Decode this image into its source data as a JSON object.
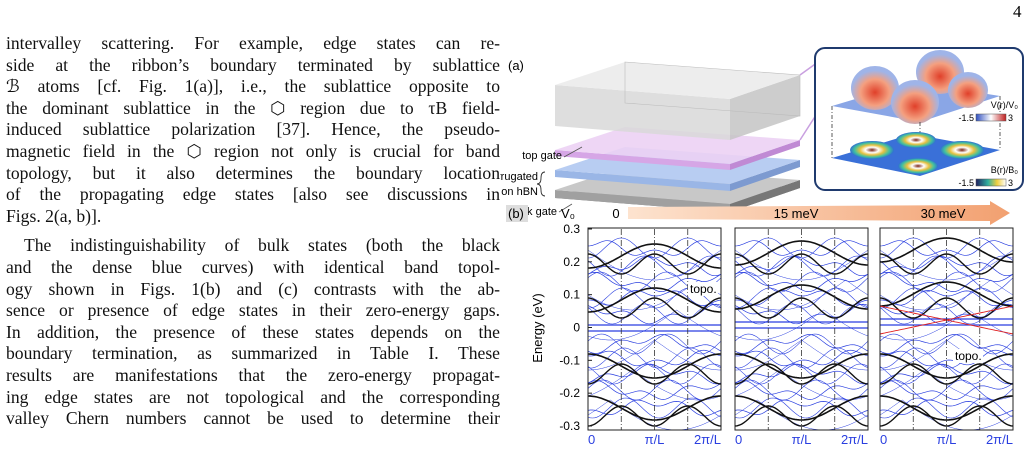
{
  "page_number": "4",
  "text": {
    "paragraphs": [
      [
        "intervalley scattering. For example, edge states can re-",
        "side at the ribbon’s boundary terminated by sublattice",
        "ℬ atoms [cf. Fig. 1(a)], i.e., the sublattice opposite to",
        "the dominant sublattice in the ⬡ region due to τB field-",
        "induced sublattice polarization [37]. Hence, the pseudo-",
        "magnetic field in the ⬡ region not only is crucial for band",
        "topology, but it also determines the boundary location",
        "of the propagating edge states [also see discussions in",
        "Figs. 2(a, b)]."
      ],
      [
        "The indistinguishability of bulk states (both the black",
        "and the dense blue curves) with identical band topol-",
        "ogy shown in Figs. 1(b) and (c) contrasts with the ab-",
        "sence or presence of edge states in their zero-energy gaps.",
        "In addition, the presence of these states depends on the",
        "boundary termination, as summarized in Table I. These",
        "results are manifestations that the zero-energy propagat-",
        "ing edge states are not topological and the corresponding",
        "valley Chern numbers cannot be used to determine their"
      ]
    ]
  },
  "figure": {
    "panel_a": {
      "label": "(a)",
      "layers": [
        "top gate",
        "corrugated",
        "Gr on hBN",
        "back gate"
      ],
      "inset": {
        "potential_label": "V(r)/V₀",
        "potential_range": [
          "-1.5",
          "3"
        ],
        "field_label": "B(r)/B₀",
        "field_range": [
          "-1.5",
          "3"
        ]
      }
    },
    "panel_b": {
      "label": "(b)",
      "steps_label": "V₀",
      "steps": [
        "0",
        "15 meV",
        "30 meV"
      ],
      "y_label": "Energy (eV)",
      "yticks": [
        0.3,
        0.2,
        0.1,
        0,
        -0.1,
        -0.2,
        -0.3
      ],
      "xticks": [
        "0",
        "π/L",
        "2π/L"
      ],
      "annotations": [
        "topo.",
        "topo."
      ]
    }
  }
}
